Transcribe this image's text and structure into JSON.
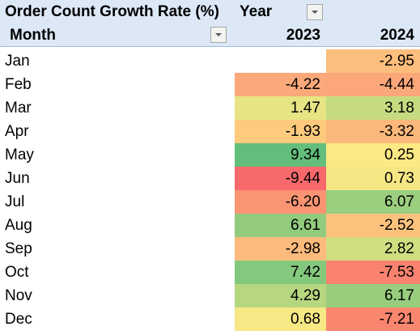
{
  "pivot": {
    "value_field_label": "Order Count Growth Rate (%)",
    "column_field_label": "Year",
    "row_field_label": "Month",
    "years": [
      "2023",
      "2024"
    ],
    "rows": [
      {
        "month": "Jan",
        "v2023": "",
        "v2024": "-2.95",
        "c2023": "#ffffff",
        "c2024": "#fcbe7c"
      },
      {
        "month": "Feb",
        "v2023": "-4.22",
        "v2024": "-4.44",
        "c2023": "#fba97a",
        "c2024": "#fba77a"
      },
      {
        "month": "Mar",
        "v2023": "1.47",
        "v2024": "3.18",
        "c2023": "#e6e483",
        "c2024": "#c6db80"
      },
      {
        "month": "Apr",
        "v2023": "-1.93",
        "v2024": "-3.32",
        "c2023": "#fdca7e",
        "c2024": "#fcb87b"
      },
      {
        "month": "May",
        "v2023": "9.34",
        "v2024": "0.25",
        "c2023": "#63be7b",
        "c2024": "#fde983"
      },
      {
        "month": "Jun",
        "v2023": "-9.44",
        "v2024": "0.73",
        "c2023": "#f8696b",
        "c2024": "#f5e884"
      },
      {
        "month": "Jul",
        "v2023": "-6.20",
        "v2024": "6.07",
        "c2023": "#fa9473",
        "c2024": "#9bce7f"
      },
      {
        "month": "Aug",
        "v2023": "6.61",
        "v2024": "-2.52",
        "c2023": "#92cb7e",
        "c2024": "#fcc27d"
      },
      {
        "month": "Sep",
        "v2023": "-2.98",
        "v2024": "2.82",
        "c2023": "#fcbb7c",
        "c2024": "#d0dd81"
      },
      {
        "month": "Oct",
        "v2023": "7.42",
        "v2024": "-7.53",
        "c2023": "#84c87d",
        "c2024": "#f98370"
      },
      {
        "month": "Nov",
        "v2023": "4.29",
        "v2024": "6.17",
        "c2023": "#b7d680",
        "c2024": "#98cd7e"
      },
      {
        "month": "Dec",
        "v2023": "0.68",
        "v2024": "-7.21",
        "c2023": "#f6e884",
        "c2024": "#f9866f"
      }
    ]
  },
  "colors": {
    "header_bg": "#dde8f7",
    "header_border": "#9bbbe3"
  },
  "icons": {
    "filter_dropdown": "chevron-down-icon"
  }
}
